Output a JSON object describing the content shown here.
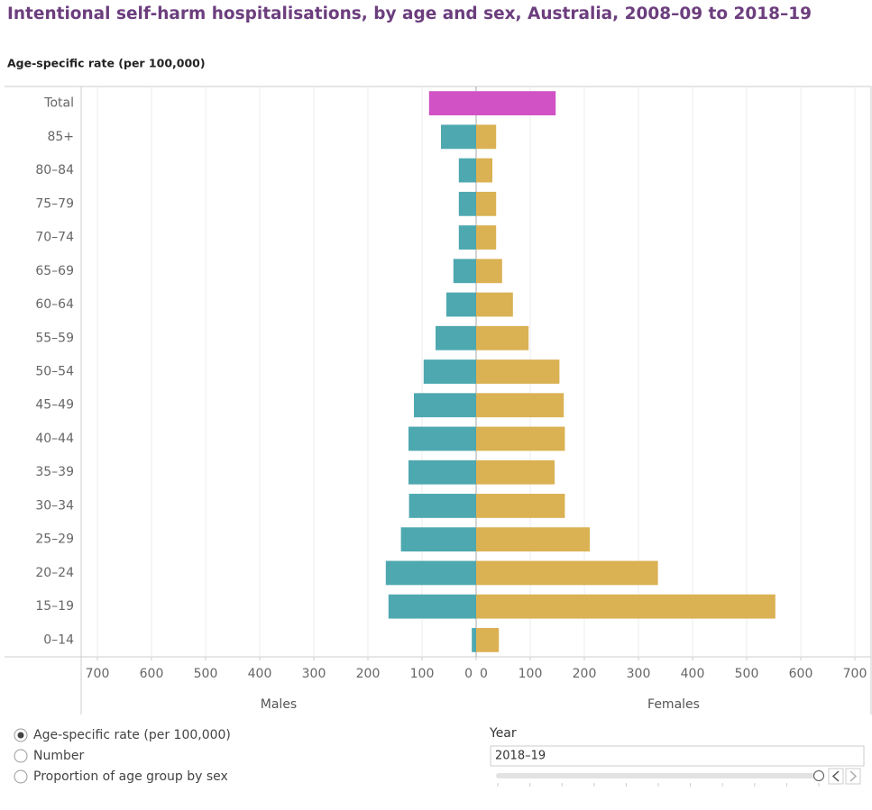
{
  "chart_data": {
    "type": "bar",
    "title": "Intentional self-harm hospitalisations, by age and sex, Australia, 2008–09 to 2018–19",
    "subtitle": "Age-specific rate (per 100,000)",
    "categories": [
      "Total",
      "85+",
      "80–84",
      "75–79",
      "70–74",
      "65–69",
      "60–64",
      "55–59",
      "50–54",
      "45–49",
      "40–44",
      "35–39",
      "30–34",
      "25–29",
      "20–24",
      "15–19",
      "0–14"
    ],
    "series": [
      {
        "name": "Males",
        "color": "#4ea8b0",
        "values": [
          87,
          65,
          32,
          32,
          32,
          42,
          55,
          75,
          97,
          115,
          125,
          125,
          124,
          139,
          167,
          162,
          8
        ]
      },
      {
        "name": "Females",
        "color": "#dab153",
        "values": [
          147,
          37,
          30,
          37,
          37,
          48,
          68,
          97,
          154,
          162,
          164,
          145,
          164,
          210,
          336,
          553,
          42
        ]
      }
    ],
    "highlight": {
      "categories": [
        "Total"
      ],
      "color": "#d152c4"
    },
    "xlim": [
      0,
      730
    ],
    "xticks": [
      0,
      100,
      200,
      300,
      400,
      500,
      600,
      700
    ],
    "grid": true
  },
  "controls": {
    "measure_options": [
      "Age-specific rate (per 100,000)",
      "Number",
      "Proportion of age group by sex"
    ],
    "selected": 0,
    "year_label": "Year",
    "year_value": "2018–19"
  }
}
